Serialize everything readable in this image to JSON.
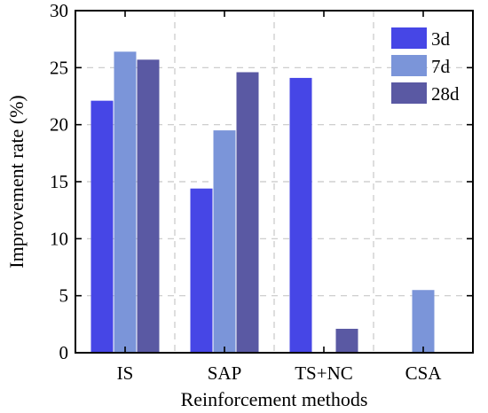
{
  "chart_data": {
    "type": "bar",
    "xlabel": "Reinforcement methods",
    "ylabel": "Improvement rate (%)",
    "ylim": [
      0,
      30
    ],
    "yticks": [
      0,
      5,
      10,
      15,
      20,
      25,
      30
    ],
    "categories": [
      "IS",
      "SAP",
      "TS+NC",
      "CSA"
    ],
    "series": [
      {
        "name": "3d",
        "color": "#4646e6",
        "values": [
          22.1,
          14.4,
          24.1,
          null
        ]
      },
      {
        "name": "7d",
        "color": "#7b95d9",
        "values": [
          26.4,
          19.5,
          null,
          5.5
        ]
      },
      {
        "name": "28d",
        "color": "#5a59a3",
        "values": [
          25.7,
          24.6,
          2.1,
          null
        ]
      }
    ],
    "grid": true,
    "legend_position": "top-right"
  }
}
